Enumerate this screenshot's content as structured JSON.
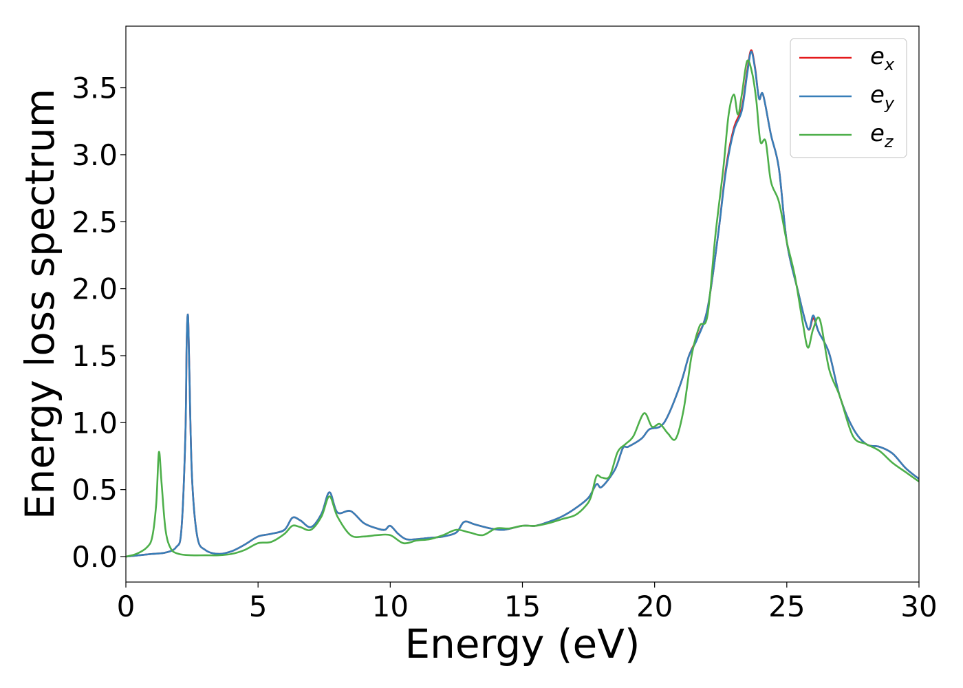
{
  "chart_data": {
    "type": "line",
    "xlabel": "Energy (eV)",
    "ylabel": "Energy loss spectrum",
    "xlim": [
      0,
      30
    ],
    "ylim": [
      -0.19,
      3.96
    ],
    "xticks": [
      0,
      5,
      10,
      15,
      20,
      25,
      30
    ],
    "xtick_labels": [
      "0",
      "5",
      "10",
      "15",
      "20",
      "25",
      "30"
    ],
    "yticks": [
      0.0,
      0.5,
      1.0,
      1.5,
      2.0,
      2.5,
      3.0,
      3.5
    ],
    "ytick_labels": [
      "0.0",
      "0.5",
      "1.0",
      "1.5",
      "2.0",
      "2.5",
      "3.0",
      "3.5"
    ],
    "grid": false,
    "legend": {
      "placement": "top-right"
    },
    "series": [
      {
        "name": "e_x",
        "label_base": "e",
        "label_sub": "x",
        "color": "#e41a1c",
        "x": [
          0,
          0.5,
          1.0,
          1.5,
          1.9,
          2.1,
          2.25,
          2.3,
          2.35,
          2.4,
          2.5,
          2.7,
          3.0,
          3.5,
          4.0,
          4.5,
          5.0,
          5.5,
          6.0,
          6.3,
          6.6,
          7.0,
          7.4,
          7.7,
          8.0,
          8.5,
          9.0,
          9.5,
          9.8,
          10.0,
          10.3,
          10.6,
          11.0,
          11.5,
          12.0,
          12.5,
          12.8,
          13.2,
          13.8,
          14.3,
          15.0,
          15.5,
          16.0,
          16.5,
          17.0,
          17.5,
          17.8,
          18.0,
          18.5,
          18.8,
          19.0,
          19.5,
          19.8,
          20.2,
          20.5,
          21.0,
          21.3,
          21.6,
          22.0,
          22.4,
          22.7,
          23.0,
          23.3,
          23.5,
          23.65,
          23.8,
          23.95,
          24.1,
          24.4,
          24.7,
          25.0,
          25.4,
          25.8,
          26.0,
          26.2,
          26.6,
          27.0,
          27.5,
          28.0,
          28.5,
          29.0,
          29.5,
          30.0
        ],
        "values": [
          0.0,
          0.01,
          0.02,
          0.03,
          0.07,
          0.2,
          0.9,
          1.6,
          1.8,
          1.4,
          0.6,
          0.15,
          0.05,
          0.02,
          0.04,
          0.09,
          0.15,
          0.17,
          0.2,
          0.29,
          0.27,
          0.22,
          0.32,
          0.48,
          0.33,
          0.34,
          0.25,
          0.21,
          0.2,
          0.23,
          0.17,
          0.13,
          0.13,
          0.14,
          0.15,
          0.18,
          0.26,
          0.24,
          0.21,
          0.2,
          0.23,
          0.23,
          0.26,
          0.3,
          0.36,
          0.44,
          0.54,
          0.52,
          0.65,
          0.81,
          0.82,
          0.88,
          0.95,
          0.97,
          1.05,
          1.3,
          1.5,
          1.63,
          1.85,
          2.4,
          2.9,
          3.2,
          3.35,
          3.62,
          3.78,
          3.65,
          3.42,
          3.45,
          3.15,
          2.9,
          2.35,
          2.0,
          1.7,
          1.78,
          1.68,
          1.52,
          1.2,
          0.96,
          0.84,
          0.82,
          0.77,
          0.66,
          0.58
        ]
      },
      {
        "name": "e_y",
        "label_base": "e",
        "label_sub": "y",
        "color": "#377eb8",
        "x": [
          0,
          0.5,
          1.0,
          1.5,
          1.9,
          2.1,
          2.25,
          2.3,
          2.35,
          2.4,
          2.5,
          2.7,
          3.0,
          3.5,
          4.0,
          4.5,
          5.0,
          5.5,
          6.0,
          6.3,
          6.6,
          7.0,
          7.4,
          7.7,
          8.0,
          8.5,
          9.0,
          9.5,
          9.8,
          10.0,
          10.3,
          10.6,
          11.0,
          11.5,
          12.0,
          12.5,
          12.8,
          13.2,
          13.8,
          14.3,
          15.0,
          15.5,
          16.0,
          16.5,
          17.0,
          17.5,
          17.8,
          18.0,
          18.5,
          18.8,
          19.0,
          19.5,
          19.8,
          20.2,
          20.5,
          21.0,
          21.3,
          21.6,
          22.0,
          22.4,
          22.7,
          23.0,
          23.3,
          23.5,
          23.65,
          23.8,
          23.95,
          24.1,
          24.4,
          24.7,
          25.0,
          25.4,
          25.8,
          26.0,
          26.2,
          26.6,
          27.0,
          27.5,
          28.0,
          28.5,
          29.0,
          29.5,
          30.0
        ],
        "values": [
          0.0,
          0.01,
          0.02,
          0.03,
          0.07,
          0.2,
          0.9,
          1.6,
          1.8,
          1.4,
          0.6,
          0.15,
          0.05,
          0.02,
          0.04,
          0.09,
          0.15,
          0.17,
          0.2,
          0.29,
          0.27,
          0.22,
          0.32,
          0.48,
          0.33,
          0.34,
          0.25,
          0.21,
          0.2,
          0.23,
          0.17,
          0.13,
          0.13,
          0.14,
          0.15,
          0.18,
          0.26,
          0.24,
          0.21,
          0.2,
          0.23,
          0.23,
          0.26,
          0.3,
          0.36,
          0.44,
          0.54,
          0.52,
          0.65,
          0.81,
          0.82,
          0.88,
          0.95,
          0.97,
          1.05,
          1.3,
          1.5,
          1.62,
          1.85,
          2.4,
          2.88,
          3.18,
          3.33,
          3.6,
          3.77,
          3.64,
          3.42,
          3.45,
          3.15,
          2.9,
          2.35,
          2.0,
          1.7,
          1.8,
          1.68,
          1.52,
          1.2,
          0.96,
          0.84,
          0.82,
          0.77,
          0.66,
          0.58
        ]
      },
      {
        "name": "e_z",
        "label_base": "e",
        "label_sub": "z",
        "color": "#4daf4a",
        "x": [
          0,
          0.4,
          0.8,
          1.0,
          1.15,
          1.25,
          1.35,
          1.5,
          1.7,
          2.0,
          2.5,
          3.0,
          3.5,
          4.0,
          4.5,
          5.0,
          5.5,
          6.0,
          6.3,
          6.6,
          7.0,
          7.4,
          7.7,
          8.0,
          8.5,
          9.0,
          9.5,
          10.0,
          10.5,
          11.0,
          11.5,
          12.0,
          12.5,
          13.0,
          13.5,
          14.0,
          14.5,
          15.0,
          15.5,
          16.0,
          16.5,
          17.0,
          17.4,
          17.6,
          17.8,
          18.0,
          18.3,
          18.6,
          18.9,
          19.2,
          19.6,
          19.9,
          20.2,
          20.5,
          20.8,
          21.1,
          21.4,
          21.7,
          22.0,
          22.3,
          22.6,
          22.8,
          23.0,
          23.15,
          23.3,
          23.5,
          23.7,
          23.85,
          24.0,
          24.2,
          24.4,
          24.7,
          25.0,
          25.3,
          25.6,
          25.8,
          26.0,
          26.25,
          26.6,
          27.0,
          27.5,
          28.0,
          28.5,
          29.0,
          29.5,
          30.0
        ],
        "values": [
          0.0,
          0.02,
          0.07,
          0.15,
          0.4,
          0.78,
          0.55,
          0.2,
          0.06,
          0.02,
          0.01,
          0.01,
          0.01,
          0.02,
          0.05,
          0.1,
          0.11,
          0.17,
          0.23,
          0.22,
          0.2,
          0.3,
          0.45,
          0.3,
          0.16,
          0.15,
          0.16,
          0.16,
          0.1,
          0.12,
          0.13,
          0.16,
          0.2,
          0.18,
          0.16,
          0.21,
          0.21,
          0.23,
          0.23,
          0.25,
          0.28,
          0.31,
          0.38,
          0.45,
          0.6,
          0.59,
          0.6,
          0.78,
          0.84,
          0.9,
          1.07,
          0.97,
          0.99,
          0.92,
          0.88,
          1.1,
          1.5,
          1.72,
          1.8,
          2.4,
          2.9,
          3.3,
          3.45,
          3.3,
          3.45,
          3.7,
          3.6,
          3.4,
          3.1,
          3.1,
          2.8,
          2.65,
          2.35,
          2.1,
          1.75,
          1.56,
          1.7,
          1.77,
          1.4,
          1.2,
          0.9,
          0.84,
          0.79,
          0.7,
          0.63,
          0.56
        ]
      }
    ]
  }
}
